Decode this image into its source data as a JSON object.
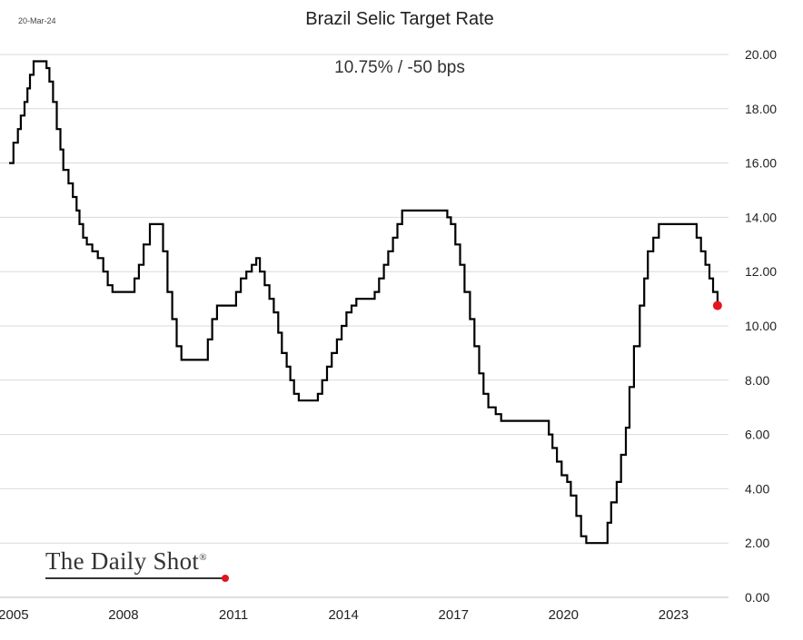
{
  "header": {
    "date": "20-Mar-24",
    "title": "Brazil Selic Target Rate",
    "subtitle": "10.75%  /  -50 bps"
  },
  "branding": {
    "logo_text": "The Daily Shot",
    "logo_mark": "®"
  },
  "colors": {
    "line": "#000000",
    "last_point": "#e8141e",
    "grid": "#d9d9d9",
    "logo_dot": "#e0141e"
  },
  "chart_data": {
    "type": "line",
    "title": "Brazil Selic Target Rate",
    "subtitle": "10.75%  /  -50 bps",
    "xlabel": "",
    "ylabel": "",
    "x_ticks": [
      "2005",
      "2008",
      "2011",
      "2014",
      "2017",
      "2020",
      "2023"
    ],
    "y_ticks": [
      "0.00",
      "2.00",
      "4.00",
      "6.00",
      "8.00",
      "10.00",
      "12.00",
      "14.00",
      "16.00",
      "18.00",
      "20.00"
    ],
    "xlim": [
      2004.88,
      2024.5
    ],
    "ylim": [
      0,
      20
    ],
    "grid": "horizontal",
    "y_axis_side": "right",
    "last_point": {
      "x": 2024.2,
      "y": 10.75
    },
    "series": [
      {
        "step": true,
        "points": [
          [
            2004.88,
            16.0
          ],
          [
            2005.0,
            16.75
          ],
          [
            2005.12,
            17.25
          ],
          [
            2005.2,
            17.75
          ],
          [
            2005.3,
            18.25
          ],
          [
            2005.38,
            18.75
          ],
          [
            2005.45,
            19.25
          ],
          [
            2005.55,
            19.75
          ],
          [
            2005.9,
            19.5
          ],
          [
            2005.98,
            19.0
          ],
          [
            2006.08,
            18.25
          ],
          [
            2006.18,
            17.25
          ],
          [
            2006.28,
            16.5
          ],
          [
            2006.36,
            15.75
          ],
          [
            2006.5,
            15.25
          ],
          [
            2006.62,
            14.75
          ],
          [
            2006.72,
            14.25
          ],
          [
            2006.8,
            13.75
          ],
          [
            2006.9,
            13.25
          ],
          [
            2007.0,
            13.0
          ],
          [
            2007.15,
            12.75
          ],
          [
            2007.3,
            12.5
          ],
          [
            2007.45,
            12.0
          ],
          [
            2007.57,
            11.5
          ],
          [
            2007.7,
            11.25
          ],
          [
            2008.3,
            11.75
          ],
          [
            2008.42,
            12.25
          ],
          [
            2008.55,
            13.0
          ],
          [
            2008.72,
            13.75
          ],
          [
            2009.08,
            12.75
          ],
          [
            2009.2,
            11.25
          ],
          [
            2009.33,
            10.25
          ],
          [
            2009.45,
            9.25
          ],
          [
            2009.58,
            8.75
          ],
          [
            2010.3,
            9.5
          ],
          [
            2010.42,
            10.25
          ],
          [
            2010.55,
            10.75
          ],
          [
            2011.07,
            11.25
          ],
          [
            2011.2,
            11.75
          ],
          [
            2011.35,
            12.0
          ],
          [
            2011.5,
            12.25
          ],
          [
            2011.62,
            12.5
          ],
          [
            2011.72,
            12.0
          ],
          [
            2011.85,
            11.5
          ],
          [
            2011.98,
            11.0
          ],
          [
            2012.1,
            10.5
          ],
          [
            2012.22,
            9.75
          ],
          [
            2012.32,
            9.0
          ],
          [
            2012.45,
            8.5
          ],
          [
            2012.55,
            8.0
          ],
          [
            2012.65,
            7.5
          ],
          [
            2012.78,
            7.25
          ],
          [
            2013.3,
            7.5
          ],
          [
            2013.42,
            8.0
          ],
          [
            2013.55,
            8.5
          ],
          [
            2013.68,
            9.0
          ],
          [
            2013.82,
            9.5
          ],
          [
            2013.95,
            10.0
          ],
          [
            2014.08,
            10.5
          ],
          [
            2014.22,
            10.75
          ],
          [
            2014.35,
            11.0
          ],
          [
            2014.85,
            11.25
          ],
          [
            2014.97,
            11.75
          ],
          [
            2015.1,
            12.25
          ],
          [
            2015.22,
            12.75
          ],
          [
            2015.35,
            13.25
          ],
          [
            2015.47,
            13.75
          ],
          [
            2015.6,
            14.25
          ],
          [
            2016.83,
            14.0
          ],
          [
            2016.93,
            13.75
          ],
          [
            2017.05,
            13.0
          ],
          [
            2017.18,
            12.25
          ],
          [
            2017.3,
            11.25
          ],
          [
            2017.45,
            10.25
          ],
          [
            2017.57,
            9.25
          ],
          [
            2017.7,
            8.25
          ],
          [
            2017.82,
            7.5
          ],
          [
            2017.95,
            7.0
          ],
          [
            2018.15,
            6.75
          ],
          [
            2018.3,
            6.5
          ],
          [
            2019.6,
            6.0
          ],
          [
            2019.7,
            5.5
          ],
          [
            2019.82,
            5.0
          ],
          [
            2019.95,
            4.5
          ],
          [
            2020.1,
            4.25
          ],
          [
            2020.2,
            3.75
          ],
          [
            2020.35,
            3.0
          ],
          [
            2020.48,
            2.25
          ],
          [
            2020.62,
            2.0
          ],
          [
            2021.2,
            2.75
          ],
          [
            2021.3,
            3.5
          ],
          [
            2021.45,
            4.25
          ],
          [
            2021.57,
            5.25
          ],
          [
            2021.7,
            6.25
          ],
          [
            2021.8,
            7.75
          ],
          [
            2021.92,
            9.25
          ],
          [
            2022.08,
            10.75
          ],
          [
            2022.2,
            11.75
          ],
          [
            2022.3,
            12.75
          ],
          [
            2022.45,
            13.25
          ],
          [
            2022.6,
            13.75
          ],
          [
            2023.63,
            13.25
          ],
          [
            2023.75,
            12.75
          ],
          [
            2023.87,
            12.25
          ],
          [
            2023.98,
            11.75
          ],
          [
            2024.08,
            11.25
          ],
          [
            2024.2,
            10.75
          ]
        ]
      }
    ]
  }
}
